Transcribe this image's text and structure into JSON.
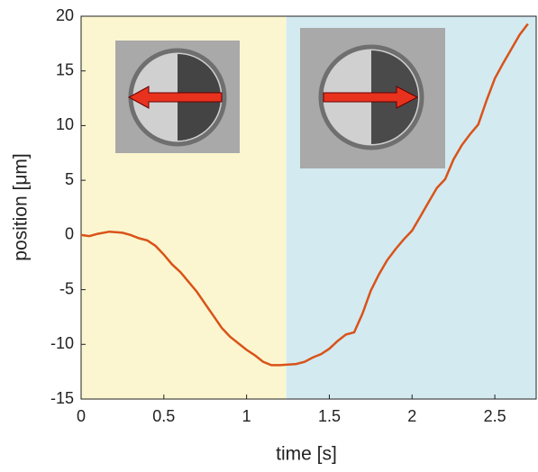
{
  "chart_data": {
    "type": "line",
    "xlabel": "time [s]",
    "ylabel": "position [μm]",
    "x": [
      0,
      0.05,
      0.1,
      0.17,
      0.25,
      0.3,
      0.35,
      0.4,
      0.45,
      0.5,
      0.55,
      0.6,
      0.65,
      0.7,
      0.75,
      0.8,
      0.85,
      0.9,
      0.95,
      1.0,
      1.05,
      1.1,
      1.15,
      1.2,
      1.3,
      1.35,
      1.4,
      1.45,
      1.5,
      1.55,
      1.6,
      1.65,
      1.7,
      1.75,
      1.8,
      1.85,
      1.9,
      1.95,
      2.0,
      2.05,
      2.1,
      2.15,
      2.2,
      2.25,
      2.3,
      2.35,
      2.4,
      2.45,
      2.5,
      2.55,
      2.6,
      2.65,
      2.7
    ],
    "values": [
      0,
      -0.1,
      0.1,
      0.3,
      0.2,
      0,
      -0.3,
      -0.5,
      -1,
      -1.8,
      -2.7,
      -3.4,
      -4.3,
      -5.2,
      -6.3,
      -7.4,
      -8.5,
      -9.3,
      -9.9,
      -10.5,
      -11,
      -11.6,
      -11.9,
      -11.9,
      -11.8,
      -11.6,
      -11.2,
      -10.9,
      -10.4,
      -9.7,
      -9.1,
      -8.9,
      -7.2,
      -5.1,
      -3.6,
      -2.3,
      -1.3,
      -0.4,
      0.4,
      1.7,
      3,
      4.3,
      5.1,
      6.9,
      8.2,
      9.2,
      10.1,
      12.3,
      14.3,
      15.7,
      17,
      18.3,
      19.3
    ],
    "color": "#d95319",
    "regions": [
      {
        "xmin": 0,
        "xmax": 1.24,
        "color": "#fbf6cf"
      },
      {
        "xmin": 1.24,
        "xmax": 2.75,
        "color": "#d3eaf1"
      }
    ],
    "xlim": [
      0,
      2.75
    ],
    "xticks": [
      0,
      0.5,
      1,
      1.5,
      2,
      2.5
    ],
    "ylim": [
      -15,
      20
    ],
    "yticks": [
      -15,
      -10,
      -5,
      0,
      5,
      10,
      15,
      20
    ]
  }
}
